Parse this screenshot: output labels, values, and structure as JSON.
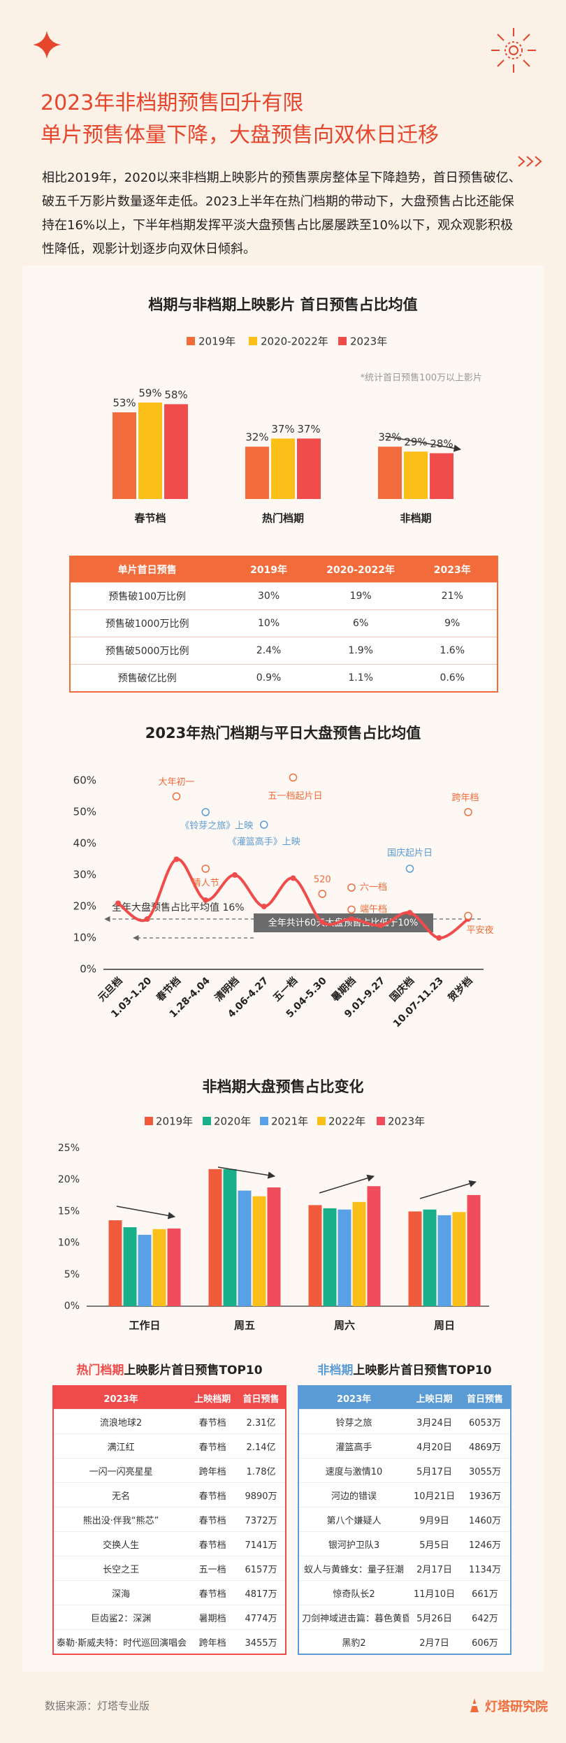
{
  "header": {
    "title_lines": [
      "2023年非档期预售回升有限",
      "单片预售体量下降，大盘预售向双休日迁移"
    ],
    "intro": "相比2019年，2020以来非档期上映影片的预售票房整体呈下降趋势，首日预售破亿、破五千万影片数量逐年走低。2023上半年在热门档期的带动下，大盘预售占比还能保持在16%以上，下半年档期发挥平淡大盘预售占比屡屡跌至10%以下，观众观影积极性降低，观影计划逐步向双休日倾斜。"
  },
  "chart_data": [
    {
      "type": "bar",
      "title": "档期与非档期上映影片 首日预售占比均值",
      "note": "*统计首日预售100万以上影片",
      "categories": [
        "春节档",
        "热门档期",
        "非档期"
      ],
      "series": [
        {
          "name": "2019年",
          "color": "#f26b3a",
          "values": [
            53,
            32,
            32
          ],
          "value_labels": [
            "53%",
            "32%",
            "32%"
          ]
        },
        {
          "name": "2020-2022年",
          "color": "#fbbf1a",
          "values": [
            59,
            37,
            29
          ],
          "value_labels": [
            "59%",
            "37%",
            "29%"
          ]
        },
        {
          "name": "2023年",
          "color": "#f04c4c",
          "values": [
            58,
            37,
            28
          ],
          "value_labels": [
            "58%",
            "37%",
            "28%"
          ]
        }
      ]
    },
    {
      "type": "line",
      "title": "2023年热门档期与平日大盘预售占比均值",
      "categories": [
        "元旦档",
        "1.03-1.20",
        "春节档",
        "1.28-4.04",
        "清明档",
        "4.06-4.27",
        "五一档",
        "5.04-5.30",
        "暑期档",
        "9.01-9.27",
        "国庆档",
        "10.07-11.23",
        "贺岁档"
      ],
      "values": [
        21,
        16,
        35,
        22,
        30,
        20,
        29,
        15,
        16,
        14,
        18,
        10,
        16
      ],
      "color": "#f04c4c",
      "ylim": [
        0,
        60
      ],
      "yticks": [
        {
          "value": 0,
          "label": "0%"
        },
        {
          "value": 10,
          "label": "10%"
        },
        {
          "value": 20,
          "label": "20%"
        },
        {
          "value": 30,
          "label": "30%"
        },
        {
          "value": 40,
          "label": "40%"
        },
        {
          "value": 50,
          "label": "50%"
        },
        {
          "value": 60,
          "label": "60%"
        }
      ],
      "events": [
        {
          "label": "大年初一",
          "category": "春节档",
          "value": 55,
          "color": "#f26b3a"
        },
        {
          "label": "《铃芽之旅》上映",
          "category": "1.28-4.04",
          "value": 50,
          "color": "#5b9bd5"
        },
        {
          "label": "情人节",
          "category": "1.28-4.04",
          "value": 32,
          "color": "#f26b3a"
        },
        {
          "label": "《灌篮高手》上映",
          "category": "4.06-4.27",
          "value": 46,
          "color": "#5b9bd5"
        },
        {
          "label": "五一档起片日",
          "category": "五一档",
          "value": 61,
          "color": "#f26b3a"
        },
        {
          "label": "520",
          "category": "5.04-5.30",
          "value": 24,
          "color": "#f26b3a"
        },
        {
          "label": "六一档",
          "category": "暑期档",
          "value": 26,
          "color": "#f26b3a"
        },
        {
          "label": "端午档",
          "category": "暑期档",
          "value": 19,
          "color": "#f26b3a"
        },
        {
          "label": "国庆起片日",
          "category": "国庆档",
          "value": 32,
          "color": "#5b9bd5"
        },
        {
          "label": "跨年档",
          "category": "贺岁档",
          "value": 50,
          "color": "#f26b3a"
        },
        {
          "label": "平安夜",
          "category": "贺岁档",
          "value": 17,
          "color": "#f26b3a"
        }
      ],
      "reference_lines": [
        {
          "label": "全年大盘预售占比平均值 16%",
          "value": 16
        },
        {
          "label": "全年共计60天大盘预售占比低于10%",
          "value": 10
        }
      ]
    },
    {
      "type": "bar",
      "title": "非档期大盘预售占比变化",
      "categories": [
        "工作日",
        "周五",
        "周六",
        "周日"
      ],
      "series": [
        {
          "name": "2019年",
          "color": "#f05b3c",
          "values": [
            13.6,
            21.7,
            16.0,
            15.0
          ]
        },
        {
          "name": "2020年",
          "color": "#1aaf8b",
          "values": [
            12.5,
            21.7,
            15.5,
            15.3
          ]
        },
        {
          "name": "2021年",
          "color": "#5aa0e6",
          "values": [
            11.3,
            18.3,
            15.3,
            14.4
          ]
        },
        {
          "name": "2022年",
          "color": "#fbbf1a",
          "values": [
            12.2,
            17.4,
            16.5,
            14.9
          ]
        },
        {
          "name": "2023年",
          "color": "#f04c5c",
          "values": [
            12.3,
            18.8,
            19.0,
            17.6
          ]
        }
      ],
      "ylim": [
        0,
        25
      ],
      "yticks": [
        {
          "value": 0,
          "label": "0%"
        },
        {
          "value": 5,
          "label": "5%"
        },
        {
          "value": 10,
          "label": "10%"
        },
        {
          "value": 15,
          "label": "15%"
        },
        {
          "value": 20,
          "label": "20%"
        },
        {
          "value": 25,
          "label": "25%"
        }
      ]
    }
  ],
  "presale_table": {
    "header": [
      "单片首日预售",
      "2019年",
      "2020-2022年",
      "2023年"
    ],
    "rows": [
      [
        "预售破100万比例",
        "30%",
        "19%",
        "21%"
      ],
      [
        "预售破1000万比例",
        "10%",
        "6%",
        "9%"
      ],
      [
        "预售破5000万比例",
        "2.4%",
        "1.9%",
        "1.6%"
      ],
      [
        "预售破亿比例",
        "0.9%",
        "1.1%",
        "0.6%"
      ]
    ]
  },
  "top10_hot": {
    "title": {
      "highlight": "热门档期",
      "rest": "上映影片首日预售TOP10"
    },
    "color": "#ef4b4b",
    "header": [
      "2023年",
      "上映档期",
      "首日预售"
    ],
    "rows": [
      [
        "流浪地球2",
        "春节档",
        "2.31亿"
      ],
      [
        "满江红",
        "春节档",
        "2.14亿"
      ],
      [
        "一闪一闪亮星星",
        "跨年档",
        "1.78亿"
      ],
      [
        "无名",
        "春节档",
        "9890万"
      ],
      [
        "熊出没·伴我“熊芯”",
        "春节档",
        "7372万"
      ],
      [
        "交换人生",
        "春节档",
        "7141万"
      ],
      [
        "长空之王",
        "五一档",
        "6157万"
      ],
      [
        "深海",
        "春节档",
        "4817万"
      ],
      [
        "巨齿鲨2：深渊",
        "暑期档",
        "4774万"
      ],
      [
        "泰勒·斯威夫特：时代巡回演唱会",
        "跨年档",
        "3455万"
      ]
    ]
  },
  "top10_off": {
    "title": {
      "highlight": "非档期",
      "rest": "上映影片首日预售TOP10"
    },
    "color": "#5b9bd5",
    "header": [
      "2023年",
      "上映日期",
      "首日预售"
    ],
    "rows": [
      [
        "铃芽之旅",
        "3月24日",
        "6053万"
      ],
      [
        "灌篮高手",
        "4月20日",
        "4869万"
      ],
      [
        "速度与激情10",
        "5月17日",
        "3055万"
      ],
      [
        "河边的错误",
        "10月21日",
        "1936万"
      ],
      [
        "第八个嫌疑人",
        "9月9日",
        "1460万"
      ],
      [
        "银河护卫队3",
        "5月5日",
        "1246万"
      ],
      [
        "蚁人与黄蜂女：量子狂潮",
        "2月17日",
        "1134万"
      ],
      [
        "惊奇队长2",
        "11月10日",
        "661万"
      ],
      [
        "刀剑神域进击篇：暮色黄昏",
        "5月26日",
        "642万"
      ],
      [
        "黑豹2",
        "2月7日",
        "606万"
      ]
    ]
  },
  "footer": {
    "source": "数据来源：灯塔专业版",
    "brand": "灯塔研究院"
  }
}
